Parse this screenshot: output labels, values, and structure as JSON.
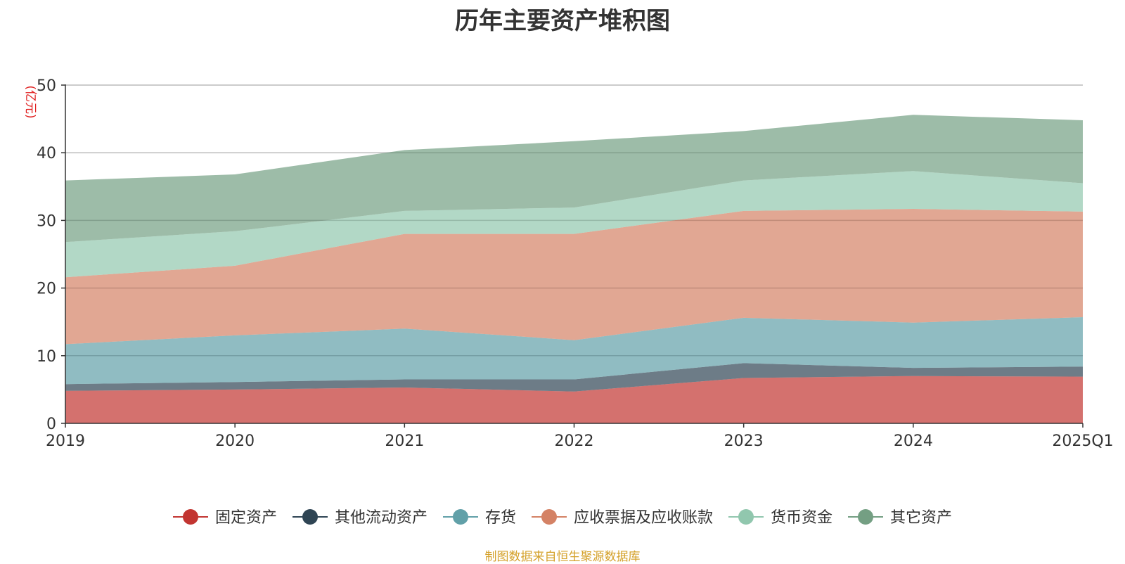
{
  "chart_data": {
    "type": "area",
    "title": "历年主要资产堆积图",
    "ylabel": "(亿元)",
    "xlabel": "",
    "categories": [
      "2019",
      "2020",
      "2021",
      "2022",
      "2023",
      "2024",
      "2025Q1"
    ],
    "ylim": [
      0,
      50
    ],
    "yticks": [
      0,
      10,
      20,
      30,
      40,
      50
    ],
    "stacked": true,
    "grid": true,
    "legend_position": "bottom",
    "series": [
      {
        "name": "固定资产",
        "color": "#c23531",
        "values": [
          4.8,
          5.0,
          5.3,
          4.7,
          6.7,
          7.0,
          6.9
        ]
      },
      {
        "name": "其他流动资产",
        "color": "#2f4554",
        "values": [
          1.0,
          1.1,
          1.2,
          1.8,
          2.2,
          1.2,
          1.5
        ]
      },
      {
        "name": "存货",
        "color": "#61a0a8",
        "values": [
          5.9,
          6.9,
          7.5,
          5.8,
          6.7,
          6.7,
          7.3
        ]
      },
      {
        "name": "应收票据及应收账款",
        "color": "#d48265",
        "values": [
          9.9,
          10.3,
          14.0,
          15.7,
          15.8,
          16.8,
          15.6
        ]
      },
      {
        "name": "货币资金",
        "color": "#91c7ae",
        "values": [
          5.2,
          5.1,
          3.4,
          3.9,
          4.5,
          5.6,
          4.2
        ]
      },
      {
        "name": "其它资产",
        "color": "#749f83",
        "values": [
          9.1,
          8.4,
          9.0,
          9.8,
          7.3,
          8.3,
          9.3
        ]
      }
    ]
  },
  "source_note": "制图数据来自恒生聚源数据库"
}
